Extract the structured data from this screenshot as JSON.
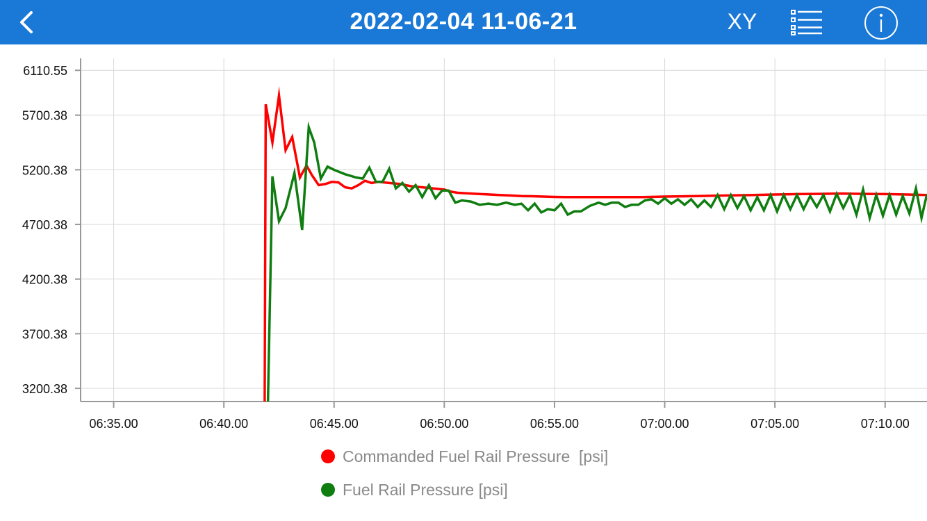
{
  "header": {
    "back_icon": "chevron-left-icon",
    "title": "2022-02-04 11-06-21",
    "xy_label": "XY",
    "list_icon": "list-icon",
    "info_icon": "info-icon",
    "background": "#1a78d6"
  },
  "chart_data": {
    "type": "line",
    "x_tick_labels": [
      "06:35.00",
      "06:40.00",
      "06:45.00",
      "06:50.00",
      "06:55.00",
      "07:00.00",
      "07:05.00",
      "07:10.00"
    ],
    "x_ticks": [
      35,
      40,
      45,
      50,
      55,
      60,
      65,
      70
    ],
    "xlim": [
      33.5,
      71.9
    ],
    "y_tick_labels": [
      "6110.55",
      "5700.38",
      "5200.38",
      "4700.38",
      "4200.38",
      "3700.38",
      "3200.38"
    ],
    "y_ticks": [
      6110.55,
      5700.38,
      5200.38,
      4700.38,
      4200.38,
      3700.38,
      3200.38
    ],
    "ylim": [
      3080,
      6220
    ],
    "grid": true,
    "series": [
      {
        "name": "Commanded Fuel Rail Pressure  [psi]",
        "color": "#ff0000",
        "points": [
          [
            41.85,
            3080
          ],
          [
            41.9,
            5800
          ],
          [
            42.2,
            5450
          ],
          [
            42.5,
            5880
          ],
          [
            42.8,
            5380
          ],
          [
            43.1,
            5500
          ],
          [
            43.45,
            5130
          ],
          [
            43.75,
            5240
          ],
          [
            44.0,
            5150
          ],
          [
            44.3,
            5060
          ],
          [
            44.6,
            5070
          ],
          [
            44.9,
            5090
          ],
          [
            45.2,
            5085
          ],
          [
            45.5,
            5040
          ],
          [
            45.8,
            5030
          ],
          [
            46.1,
            5060
          ],
          [
            46.4,
            5100
          ],
          [
            46.7,
            5080
          ],
          [
            47.0,
            5090
          ],
          [
            47.5,
            5080
          ],
          [
            48.0,
            5070
          ],
          [
            48.5,
            5050
          ],
          [
            49.0,
            5040
          ],
          [
            49.5,
            5030
          ],
          [
            50.0,
            5020
          ],
          [
            50.3,
            5000
          ],
          [
            50.6,
            4990
          ],
          [
            51.0,
            4985
          ],
          [
            51.5,
            4980
          ],
          [
            52.0,
            4975
          ],
          [
            52.5,
            4970
          ],
          [
            53.0,
            4965
          ],
          [
            53.5,
            4960
          ],
          [
            54.0,
            4958
          ],
          [
            54.5,
            4955
          ],
          [
            55.0,
            4952
          ],
          [
            55.5,
            4950
          ],
          [
            56.0,
            4950
          ],
          [
            57.0,
            4950
          ],
          [
            58.0,
            4950
          ],
          [
            59.0,
            4950
          ],
          [
            60.0,
            4955
          ],
          [
            61.0,
            4958
          ],
          [
            62.0,
            4962
          ],
          [
            63.0,
            4966
          ],
          [
            64.0,
            4970
          ],
          [
            65.0,
            4974
          ],
          [
            66.0,
            4978
          ],
          [
            67.0,
            4980
          ],
          [
            68.0,
            4983
          ],
          [
            69.0,
            4980
          ],
          [
            70.0,
            4978
          ],
          [
            71.0,
            4974
          ],
          [
            71.9,
            4970
          ]
        ]
      },
      {
        "name": "Fuel Rail Pressure [psi]",
        "color": "#0f7d0f",
        "points": [
          [
            42.0,
            3080
          ],
          [
            42.2,
            5140
          ],
          [
            42.5,
            4730
          ],
          [
            42.8,
            4850
          ],
          [
            43.2,
            5170
          ],
          [
            43.55,
            4650
          ],
          [
            43.85,
            5590
          ],
          [
            44.1,
            5450
          ],
          [
            44.4,
            5120
          ],
          [
            44.7,
            5230
          ],
          [
            45.0,
            5200
          ],
          [
            45.5,
            5160
          ],
          [
            46.0,
            5130
          ],
          [
            46.3,
            5120
          ],
          [
            46.6,
            5220
          ],
          [
            46.9,
            5090
          ],
          [
            47.2,
            5090
          ],
          [
            47.5,
            5210
          ],
          [
            47.8,
            5030
          ],
          [
            48.1,
            5080
          ],
          [
            48.4,
            5000
          ],
          [
            48.7,
            5060
          ],
          [
            49.0,
            4950
          ],
          [
            49.3,
            5060
          ],
          [
            49.6,
            4940
          ],
          [
            49.9,
            5010
          ],
          [
            50.2,
            5010
          ],
          [
            50.5,
            4900
          ],
          [
            50.8,
            4920
          ],
          [
            51.2,
            4910
          ],
          [
            51.6,
            4880
          ],
          [
            52.0,
            4890
          ],
          [
            52.4,
            4880
          ],
          [
            52.8,
            4900
          ],
          [
            53.2,
            4880
          ],
          [
            53.5,
            4890
          ],
          [
            53.8,
            4830
          ],
          [
            54.1,
            4890
          ],
          [
            54.4,
            4810
          ],
          [
            54.7,
            4840
          ],
          [
            55.0,
            4830
          ],
          [
            55.3,
            4890
          ],
          [
            55.6,
            4790
          ],
          [
            55.9,
            4820
          ],
          [
            56.2,
            4820
          ],
          [
            56.6,
            4870
          ],
          [
            57.0,
            4900
          ],
          [
            57.3,
            4880
          ],
          [
            57.6,
            4900
          ],
          [
            57.9,
            4900
          ],
          [
            58.2,
            4860
          ],
          [
            58.5,
            4880
          ],
          [
            58.8,
            4880
          ],
          [
            59.1,
            4920
          ],
          [
            59.4,
            4930
          ],
          [
            59.7,
            4890
          ],
          [
            60.0,
            4940
          ],
          [
            60.3,
            4890
          ],
          [
            60.6,
            4930
          ],
          [
            60.9,
            4880
          ],
          [
            61.2,
            4930
          ],
          [
            61.5,
            4860
          ],
          [
            61.8,
            4920
          ],
          [
            62.1,
            4860
          ],
          [
            62.4,
            4970
          ],
          [
            62.7,
            4840
          ],
          [
            63.0,
            4970
          ],
          [
            63.3,
            4850
          ],
          [
            63.6,
            4960
          ],
          [
            63.9,
            4830
          ],
          [
            64.2,
            4950
          ],
          [
            64.5,
            4830
          ],
          [
            64.8,
            4970
          ],
          [
            65.1,
            4820
          ],
          [
            65.4,
            4970
          ],
          [
            65.7,
            4840
          ],
          [
            66.0,
            4970
          ],
          [
            66.3,
            4840
          ],
          [
            66.6,
            4960
          ],
          [
            66.9,
            4860
          ],
          [
            67.2,
            4970
          ],
          [
            67.5,
            4820
          ],
          [
            67.8,
            4980
          ],
          [
            68.1,
            4850
          ],
          [
            68.4,
            4970
          ],
          [
            68.7,
            4790
          ],
          [
            69.0,
            5020
          ],
          [
            69.3,
            4760
          ],
          [
            69.6,
            4970
          ],
          [
            69.9,
            4780
          ],
          [
            70.2,
            4970
          ],
          [
            70.5,
            4790
          ],
          [
            70.8,
            4960
          ],
          [
            71.1,
            4800
          ],
          [
            71.4,
            5030
          ],
          [
            71.65,
            4760
          ],
          [
            71.9,
            4980
          ]
        ]
      }
    ]
  }
}
